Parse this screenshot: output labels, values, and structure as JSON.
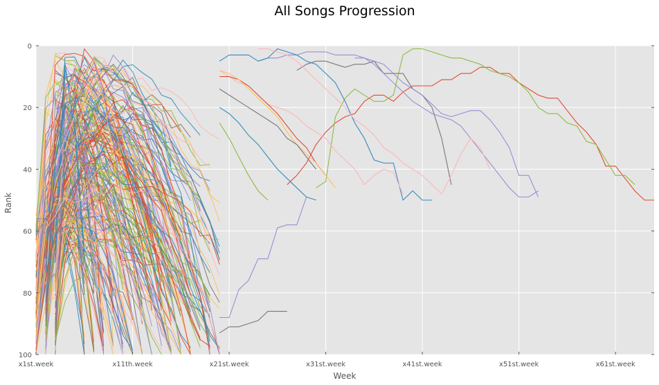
{
  "chart_data": {
    "type": "line",
    "title": "All Songs Progression",
    "xlabel": "Week",
    "ylabel": "Rank",
    "xlim": [
      1,
      65
    ],
    "ylim": [
      100,
      0
    ],
    "y_inverted": true,
    "grid": true,
    "legend": "none",
    "x_ticks": [
      {
        "value": 1,
        "label": "x1st.week"
      },
      {
        "value": 11,
        "label": "x11th.week"
      },
      {
        "value": 21,
        "label": "x21st.week"
      },
      {
        "value": 31,
        "label": "x31st.week"
      },
      {
        "value": 41,
        "label": "x41st.week"
      },
      {
        "value": 51,
        "label": "x51st.week"
      },
      {
        "value": 61,
        "label": "x61st.week"
      }
    ],
    "y_ticks": [
      {
        "value": 0,
        "label": "0"
      },
      {
        "value": 20,
        "label": "20"
      },
      {
        "value": 40,
        "label": "40"
      },
      {
        "value": 60,
        "label": "60"
      },
      {
        "value": 80,
        "label": "80"
      },
      {
        "value": 100,
        "label": "100"
      }
    ],
    "colors": [
      "#E24A33",
      "#348ABD",
      "#988ED5",
      "#777777",
      "#FBC15E",
      "#8EBA42",
      "#FFB5B8"
    ],
    "background": "#E5E5E5",
    "bulk_curves": {
      "note_count": 260,
      "start_week": 1,
      "max_end_week": 20
    },
    "series": [
      {
        "color": "#E24A33",
        "x": [
          27,
          28,
          29,
          30,
          31,
          32,
          33,
          34,
          35,
          36,
          37,
          38,
          39,
          40,
          41,
          42,
          43,
          44,
          45,
          46,
          47,
          48,
          49,
          50,
          51,
          52,
          53,
          54,
          55,
          56,
          57,
          58,
          59,
          60,
          61,
          62,
          63,
          64,
          65
        ],
        "y": [
          45,
          42,
          38,
          32,
          28,
          25,
          23,
          22,
          18,
          16,
          16,
          18,
          15,
          13,
          13,
          13,
          11,
          11,
          9,
          9,
          7,
          7,
          9,
          9,
          12,
          14,
          16,
          17,
          17,
          21,
          25,
          28,
          32,
          39,
          39,
          43,
          47,
          50,
          50
        ]
      },
      {
        "color": "#8EBA42",
        "x": [
          30,
          31,
          32,
          33,
          34,
          35,
          36,
          37,
          38,
          39,
          40,
          41,
          42,
          43,
          44,
          45,
          46,
          47,
          48,
          49,
          50,
          51,
          52,
          53,
          54,
          55,
          56,
          57,
          58,
          59,
          60,
          61,
          62,
          63
        ],
        "y": [
          46,
          44,
          23,
          17,
          14,
          16,
          18,
          18,
          16,
          3,
          1,
          1,
          2,
          3,
          4,
          4,
          5,
          6,
          8,
          9,
          10,
          12,
          15,
          20,
          22,
          22,
          25,
          26,
          31,
          32,
          37,
          42,
          42,
          45
        ]
      },
      {
        "color": "#777777",
        "x": [
          28,
          29,
          30,
          31,
          32,
          33,
          34,
          35,
          36,
          37,
          38,
          39,
          40,
          41,
          42,
          43,
          44
        ],
        "y": [
          8,
          6,
          5,
          5,
          6,
          7,
          6,
          6,
          5,
          9,
          9,
          9,
          14,
          16,
          20,
          30,
          45
        ]
      },
      {
        "color": "#988ED5",
        "x": [
          24,
          25,
          26,
          27,
          28,
          29,
          30,
          31,
          32,
          33,
          34,
          35,
          36,
          37,
          38,
          39,
          40,
          41,
          42,
          43,
          44,
          45,
          46,
          47,
          48,
          49,
          50,
          51,
          52,
          53
        ],
        "y": [
          5,
          4,
          4,
          3,
          3,
          2,
          2,
          2,
          3,
          3,
          3,
          4,
          6,
          9,
          12,
          15,
          18,
          20,
          22,
          23,
          24,
          26,
          30,
          34,
          38,
          42,
          46,
          49,
          49,
          47
        ]
      },
      {
        "color": "#988ED5",
        "x": [
          20,
          21,
          22,
          23,
          24,
          25,
          26,
          27,
          28,
          29
        ],
        "y": [
          88,
          88,
          79,
          76,
          69,
          69,
          59,
          58,
          58,
          49
        ]
      },
      {
        "color": "#988ED5",
        "x": [
          34,
          35,
          36,
          37,
          38,
          39,
          40,
          41,
          42,
          43,
          44,
          45,
          46,
          47,
          48,
          49,
          50,
          51,
          52,
          53
        ],
        "y": [
          4,
          4,
          5,
          6,
          9,
          12,
          14,
          16,
          19,
          22,
          23,
          22,
          21,
          21,
          24,
          28,
          33,
          42,
          42,
          49
        ]
      },
      {
        "color": "#777777",
        "x": [
          20,
          21,
          22,
          23,
          24,
          25,
          26,
          27
        ],
        "y": [
          93,
          91,
          91,
          90,
          89,
          86,
          86,
          86
        ]
      },
      {
        "color": "#348ABD",
        "x": [
          20,
          21,
          22,
          23,
          24,
          25,
          26,
          27,
          28,
          29,
          30,
          31,
          32,
          33,
          34,
          35,
          36,
          37,
          38,
          39,
          40,
          41,
          42
        ],
        "y": [
          5,
          3,
          3,
          3,
          5,
          4,
          1,
          2,
          3,
          5,
          6,
          9,
          12,
          18,
          25,
          30,
          37,
          38,
          38,
          50,
          47,
          50,
          50
        ]
      },
      {
        "color": "#FFB5B8",
        "x": [
          24,
          25,
          26,
          27,
          28,
          29,
          30,
          31,
          32,
          33,
          34,
          35,
          36,
          37,
          38,
          39,
          40,
          41,
          42,
          43,
          44,
          45,
          46,
          47,
          48
        ],
        "y": [
          1,
          1,
          2,
          3,
          5,
          8,
          11,
          14,
          17,
          20,
          24,
          26,
          29,
          33,
          35,
          38,
          40,
          42,
          45,
          48,
          42,
          35,
          30,
          33,
          40
        ]
      },
      {
        "color": "#FFB5B8",
        "x": [
          20,
          21,
          22,
          23,
          24,
          25,
          26,
          27,
          28,
          29,
          30,
          31,
          32,
          33,
          34,
          35,
          36,
          37,
          38,
          39
        ],
        "y": [
          8,
          10,
          12,
          13,
          16,
          19,
          20,
          21,
          23,
          26,
          28,
          30,
          34,
          37,
          40,
          45,
          42,
          40,
          41,
          48
        ]
      },
      {
        "color": "#E24A33",
        "x": [
          20,
          21,
          22,
          23,
          24,
          25,
          26,
          27,
          28,
          29,
          30,
          31
        ],
        "y": [
          10,
          10,
          11,
          13,
          16,
          19,
          22,
          26,
          30,
          33,
          38,
          42
        ]
      },
      {
        "color": "#FBC15E",
        "x": [
          20,
          21,
          22,
          23,
          24,
          25,
          26,
          27,
          28,
          29,
          30,
          31,
          32
        ],
        "y": [
          8,
          9,
          11,
          14,
          17,
          20,
          23,
          28,
          32,
          35,
          38,
          42,
          46
        ]
      },
      {
        "color": "#348ABD",
        "x": [
          20,
          21,
          22,
          23,
          24,
          25,
          26,
          27,
          28,
          29,
          30
        ],
        "y": [
          20,
          22,
          25,
          29,
          32,
          36,
          40,
          43,
          46,
          49,
          50
        ]
      },
      {
        "color": "#8EBA42",
        "x": [
          20,
          21,
          22,
          23,
          24,
          25
        ],
        "y": [
          25,
          30,
          36,
          42,
          47,
          50
        ]
      },
      {
        "color": "#777777",
        "x": [
          20,
          21,
          22,
          23,
          24,
          25,
          26,
          27,
          28,
          29,
          30
        ],
        "y": [
          14,
          16,
          18,
          20,
          22,
          24,
          26,
          30,
          32,
          36,
          40
        ]
      }
    ]
  }
}
